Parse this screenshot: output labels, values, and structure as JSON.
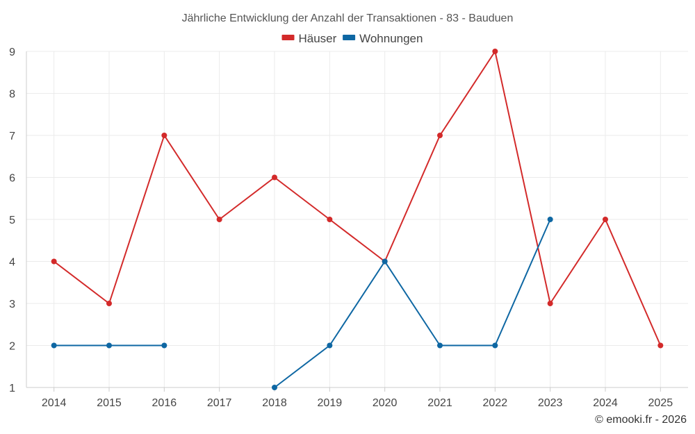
{
  "chart_data": {
    "type": "line",
    "title": "Jährliche Entwicklung der Anzahl der Transaktionen - 83 - Bauduen",
    "categories": [
      "2014",
      "2015",
      "2016",
      "2017",
      "2018",
      "2019",
      "2020",
      "2021",
      "2022",
      "2023",
      "2024",
      "2025"
    ],
    "ylim": [
      1,
      9
    ],
    "yticks": [
      "1",
      "2",
      "3",
      "4",
      "5",
      "6",
      "7",
      "8",
      "9"
    ],
    "grid": true,
    "legend_position": "top-center",
    "series": [
      {
        "name": "Häuser",
        "color": "#d32a2a",
        "values": [
          4,
          3,
          7,
          5,
          6,
          5,
          4,
          7,
          9,
          3,
          5,
          2
        ]
      },
      {
        "name": "Wohnungen",
        "color": "#0e67a3",
        "values": [
          2,
          2,
          2,
          null,
          1,
          2,
          4,
          2,
          2,
          5,
          null,
          null
        ]
      }
    ],
    "xlabel": "",
    "ylabel": ""
  },
  "footer": {
    "copyright": "© emooki.fr - 2026"
  }
}
